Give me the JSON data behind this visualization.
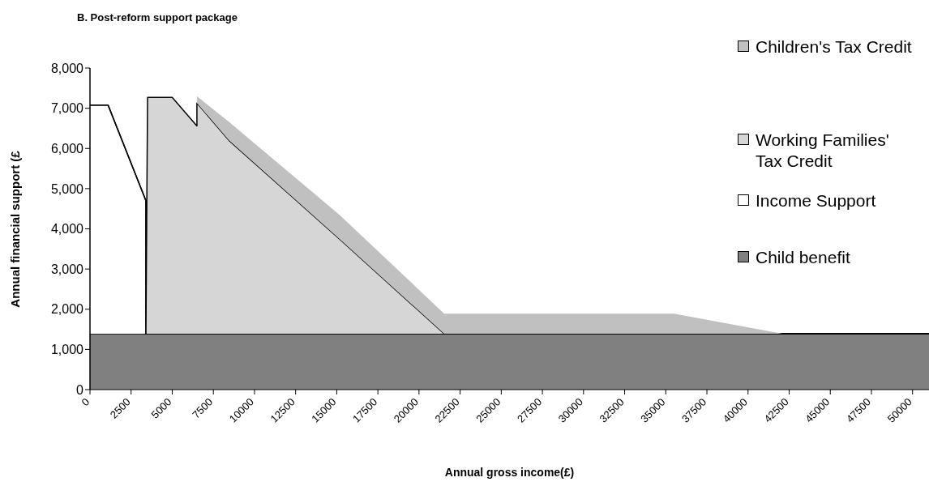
{
  "chart_data": {
    "type": "area",
    "stacked": true,
    "title": "B.  Post-reform support package",
    "xlabel": "Annual gross income(£)",
    "ylabel": "Annual financial support (£",
    "x": [
      0,
      1100,
      3400,
      3400,
      3500,
      5000,
      6500,
      6500,
      8450,
      15190,
      21530,
      35500,
      42100,
      51000
    ],
    "series": [
      {
        "name": "Child benefit",
        "color": "#808080",
        "values": [
          1390,
          1390,
          1390,
          1390,
          1390,
          1390,
          1390,
          1390,
          1390,
          1390,
          1390,
          1390,
          1390,
          1390
        ]
      },
      {
        "name": "Income Support",
        "color": "#ffffff",
        "values": [
          5690,
          5690,
          3310,
          0,
          0,
          0,
          0,
          0,
          0,
          0,
          0,
          0,
          0,
          0
        ]
      },
      {
        "name": "Working Families' Tax Credit",
        "color": "#d6d6d6",
        "values": [
          0,
          0,
          0,
          0,
          5880,
          5880,
          5170,
          5740,
          4810,
          2350,
          0,
          0,
          0,
          0
        ]
      },
      {
        "name": "Children's Tax Credit",
        "color": "#c0c0c0",
        "values": [
          0,
          0,
          0,
          0,
          0,
          0,
          0,
          170,
          460,
          600,
          500,
          500,
          0,
          0
        ]
      }
    ],
    "xlim": [
      0,
      51000
    ],
    "xticks": [
      0,
      2500,
      5000,
      7500,
      10000,
      12500,
      15000,
      17500,
      20000,
      22500,
      25000,
      27500,
      30000,
      32500,
      35000,
      37500,
      40000,
      42500,
      45000,
      47500,
      50000
    ],
    "ylim": [
      0,
      8000
    ],
    "yticks": [
      {
        "value": 0,
        "label": "0"
      },
      {
        "value": 1000,
        "label": "1,000"
      },
      {
        "value": 2000,
        "label": "2,000"
      },
      {
        "value": 3000,
        "label": "3,000"
      },
      {
        "value": 4000,
        "label": "4,000"
      },
      {
        "value": 5000,
        "label": "5,000"
      },
      {
        "value": 6000,
        "label": "6,000"
      },
      {
        "value": 7000,
        "label": "7,000"
      },
      {
        "value": 8000,
        "label": "8,000"
      }
    ],
    "grid": false,
    "legend": "right"
  }
}
